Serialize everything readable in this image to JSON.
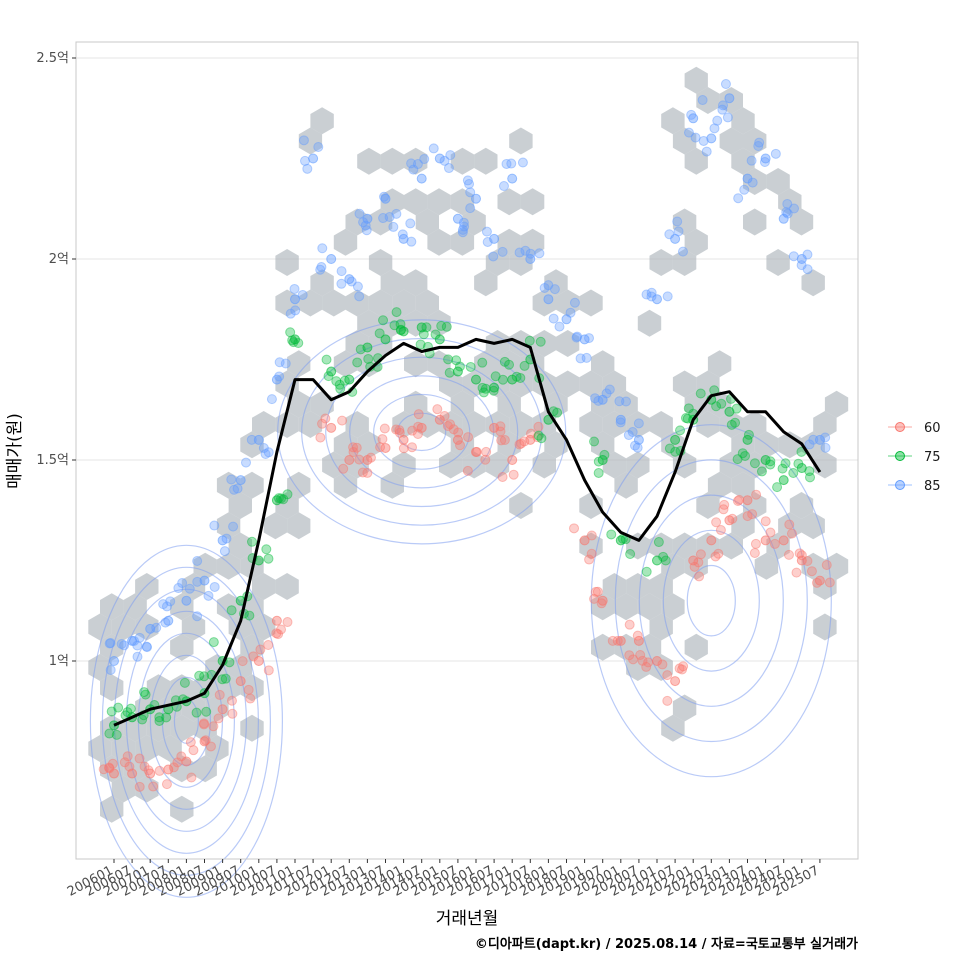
{
  "chart_data": {
    "type": "scatter",
    "title": "",
    "xlabel": "거래년월",
    "ylabel": "매매가(원)",
    "caption": "©디아파트(dapt.kr) / 2025.08.14 / 자료=국토교통부 실거래가",
    "y_ticks": [
      {
        "value": 1.0,
        "label": "1억"
      },
      {
        "value": 1.5,
        "label": "1.5억"
      },
      {
        "value": 2.0,
        "label": "2억"
      },
      {
        "value": 2.5,
        "label": "2.5억"
      }
    ],
    "ylim": [
      0.5,
      2.53
    ],
    "x_ticks": [
      "200601",
      "200607",
      "200701",
      "200707",
      "200801",
      "200807",
      "200901",
      "200907",
      "201001",
      "201007",
      "201101",
      "201107",
      "201201",
      "201207",
      "201301",
      "201307",
      "201401",
      "201407",
      "201501",
      "201507",
      "201601",
      "201607",
      "201701",
      "201707",
      "201801",
      "201807",
      "201901",
      "201907",
      "202001",
      "202007",
      "202101",
      "202107",
      "202201",
      "202207",
      "202301",
      "202307",
      "202401",
      "202407",
      "202501",
      "202507"
    ],
    "grid": true,
    "legend_position": "right",
    "legend": [
      {
        "name": "60",
        "color": "#f8766d"
      },
      {
        "name": "75",
        "color": "#00ba38"
      },
      {
        "name": "85",
        "color": "#619cff"
      }
    ],
    "colors": {
      "hex_fill": "#a9b1b8",
      "contour": "#7f9ff0",
      "trend_line": "#000000",
      "panel_border": "#c8c8c8",
      "grid": "#e6e6e6"
    },
    "moving_average": {
      "x": [
        "200601",
        "200607",
        "200701",
        "200707",
        "200801",
        "200807",
        "200901",
        "200907",
        "201001",
        "201007",
        "201101",
        "201107",
        "201201",
        "201207",
        "201301",
        "201307",
        "201401",
        "201407",
        "201501",
        "201507",
        "201601",
        "201607",
        "201701",
        "201707",
        "201801",
        "201807",
        "201901",
        "201907",
        "202001",
        "202007",
        "202101",
        "202107",
        "202201",
        "202207",
        "202301",
        "202307",
        "202401",
        "202407",
        "202501",
        "202507"
      ],
      "y": [
        0.84,
        0.86,
        0.88,
        0.89,
        0.9,
        0.92,
        0.99,
        1.1,
        1.3,
        1.52,
        1.7,
        1.7,
        1.65,
        1.67,
        1.72,
        1.76,
        1.79,
        1.77,
        1.78,
        1.78,
        1.8,
        1.79,
        1.8,
        1.78,
        1.62,
        1.55,
        1.45,
        1.37,
        1.32,
        1.3,
        1.36,
        1.47,
        1.6,
        1.66,
        1.67,
        1.62,
        1.62,
        1.57,
        1.54,
        1.47
      ]
    },
    "series": [
      {
        "name": "60",
        "x": [
          "200601",
          "200607",
          "200701",
          "200707",
          "200801",
          "200807",
          "200901",
          "200907",
          "201001",
          "201007",
          "201201",
          "201207",
          "201301",
          "201307",
          "201401",
          "201407",
          "201501",
          "201507",
          "201601",
          "201607",
          "201701",
          "201707",
          "201901",
          "201907",
          "202001",
          "202007",
          "202101",
          "202107",
          "202201",
          "202207",
          "202301",
          "202307",
          "202401",
          "202407",
          "202501",
          "202507"
        ],
        "y": [
          0.72,
          0.72,
          0.72,
          0.73,
          0.75,
          0.8,
          0.88,
          0.95,
          1.0,
          1.1,
          1.58,
          1.5,
          1.5,
          1.53,
          1.55,
          1.58,
          1.6,
          1.55,
          1.52,
          1.58,
          1.5,
          1.55,
          1.3,
          1.15,
          1.05,
          1.05,
          1.0,
          0.95,
          1.25,
          1.3,
          1.35,
          1.4,
          1.3,
          1.3,
          1.25,
          1.2
        ]
      },
      {
        "name": "75",
        "x": [
          "200601",
          "200607",
          "200701",
          "200707",
          "200801",
          "200807",
          "200901",
          "200907",
          "201001",
          "201007",
          "201101",
          "201201",
          "201207",
          "201301",
          "201307",
          "201401",
          "201407",
          "201501",
          "201507",
          "201601",
          "201607",
          "201701",
          "201707",
          "201801",
          "201907",
          "202001",
          "202101",
          "202107",
          "202201",
          "202207",
          "202301",
          "202307",
          "202401",
          "202407",
          "202501"
        ],
        "y": [
          0.84,
          0.86,
          0.88,
          0.88,
          0.9,
          0.92,
          1.0,
          1.15,
          1.25,
          1.4,
          1.8,
          1.72,
          1.7,
          1.78,
          1.8,
          1.82,
          1.83,
          1.8,
          1.72,
          1.7,
          1.68,
          1.7,
          1.75,
          1.6,
          1.5,
          1.3,
          1.25,
          1.55,
          1.6,
          1.65,
          1.62,
          1.55,
          1.5,
          1.45,
          1.48
        ]
      },
      {
        "name": "85",
        "x": [
          "200601",
          "200607",
          "200701",
          "200707",
          "200801",
          "200807",
          "200901",
          "200907",
          "201001",
          "201007",
          "201101",
          "201107",
          "201201",
          "201207",
          "201301",
          "201307",
          "201401",
          "201407",
          "201501",
          "201507",
          "201601",
          "201607",
          "201701",
          "201707",
          "201801",
          "201807",
          "201901",
          "201907",
          "202001",
          "202007",
          "202101",
          "202107",
          "202201",
          "202207",
          "202301",
          "202307",
          "202401",
          "202407",
          "202501",
          "202507"
        ],
        "y": [
          1.0,
          1.05,
          1.08,
          1.1,
          1.15,
          1.2,
          1.3,
          1.45,
          1.55,
          1.7,
          1.9,
          2.25,
          2.0,
          1.95,
          2.1,
          2.15,
          2.05,
          2.2,
          2.25,
          2.1,
          2.15,
          2.05,
          2.2,
          2.0,
          1.9,
          1.85,
          1.8,
          1.65,
          1.6,
          1.55,
          1.9,
          2.05,
          2.35,
          2.3,
          2.4,
          2.2,
          2.25,
          2.1,
          2.0,
          1.55
        ]
      }
    ]
  }
}
